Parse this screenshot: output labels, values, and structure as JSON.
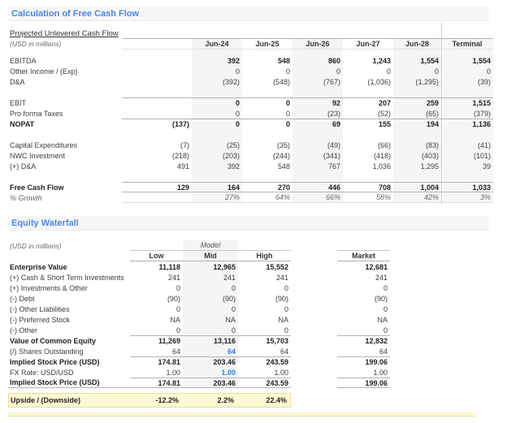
{
  "colors": {
    "accent": "#4a86e8",
    "editable": "#2f7de1",
    "highlight": "#fcf9d4",
    "column_band": "#f5f5f6"
  },
  "sections": {
    "fcf": {
      "title": "Calculation of Free Cash Flow",
      "subtitle": "Projected Unlevered Cash Flow",
      "units_label": "(USD in millions)",
      "columns": [
        "Jun-24",
        "Jun-25",
        "Jun-26",
        "Jun-27",
        "Jun-28",
        "Terminal"
      ],
      "rows": [
        {
          "label": "EBITDA",
          "val_bold": true,
          "cells": [
            "",
            "392",
            "548",
            "860",
            "1,243",
            "1,554",
            "1,554"
          ]
        },
        {
          "label": "Other Income / (Exp)",
          "cells": [
            "",
            "0",
            "0",
            "0",
            "0",
            "0",
            "0"
          ]
        },
        {
          "label": "D&A",
          "cells": [
            "",
            "(392)",
            "(548)",
            "(767)",
            "(1,036)",
            "(1,295)",
            "(39)"
          ]
        },
        {
          "spacer": true,
          "h": 13
        },
        {
          "label": "EBIT",
          "val_bold": true,
          "line_top": true,
          "cells": [
            "",
            "0",
            "0",
            "92",
            "207",
            "259",
            "1,515"
          ]
        },
        {
          "label": "Pro forma Taxes",
          "cells": [
            "",
            "0",
            "0",
            "(23)",
            "(52)",
            "(65)",
            "(379)"
          ]
        },
        {
          "label": "NOPAT",
          "label_bold": true,
          "val_bold": true,
          "line_top": true,
          "cells": [
            "(137)",
            "0",
            "0",
            "69",
            "155",
            "194",
            "1,136"
          ]
        },
        {
          "spacer": true,
          "h": 13
        },
        {
          "label": "Capital Expenditures",
          "cells": [
            "(7)",
            "(25)",
            "(35)",
            "(49)",
            "(66)",
            "(83)",
            "(41)"
          ]
        },
        {
          "label": "NWC Investment",
          "cells": [
            "(218)",
            "(203)",
            "(244)",
            "(341)",
            "(418)",
            "(403)",
            "(101)"
          ]
        },
        {
          "label": "(+) D&A",
          "cells": [
            "491",
            "392",
            "548",
            "767",
            "1,036",
            "1,295",
            "39"
          ]
        },
        {
          "spacer": true,
          "h": 13
        },
        {
          "label": "Free Cash Flow",
          "label_bold": true,
          "val_bold": true,
          "line_top": true,
          "line_bottom": true,
          "cells": [
            "129",
            "164",
            "270",
            "446",
            "708",
            "1,004",
            "1,033"
          ]
        },
        {
          "label": "% Growth",
          "italic": true,
          "line_bottom_soft": true,
          "cells": [
            "",
            "27%",
            "64%",
            "66%",
            "58%",
            "42%",
            "3%"
          ]
        }
      ]
    },
    "equity": {
      "title": "Equity Waterfall",
      "units_label": "(USD in millions)",
      "group_header": "Model",
      "columns": [
        "Low",
        "Mid",
        "High",
        "Market"
      ],
      "rows": [
        {
          "label": "Enterprise Value",
          "bold": true,
          "cells": [
            "11,118",
            "12,965",
            "15,552",
            "12,681"
          ]
        },
        {
          "label": "(+) Cash & Short Term Investments",
          "cells": [
            "241",
            "241",
            "241",
            "241"
          ]
        },
        {
          "label": "(+) Investments & Other",
          "cells": [
            "0",
            "0",
            "0",
            "0"
          ]
        },
        {
          "label": "(-) Debt",
          "cells": [
            "(90)",
            "(90)",
            "(90)",
            "(90)"
          ]
        },
        {
          "label": "(-) Other Liabilities",
          "cells": [
            "0",
            "0",
            "0",
            "0"
          ]
        },
        {
          "label": "(-) Preferred Stock",
          "cells": [
            "NA",
            "NA",
            "NA",
            "NA"
          ]
        },
        {
          "label": "(-) Other",
          "cells": [
            "0",
            "0",
            "0",
            "0"
          ]
        },
        {
          "label": "Value of Common Equity",
          "bold": true,
          "line_top": true,
          "cells": [
            "11,269",
            "13,116",
            "15,703",
            "12,832"
          ]
        },
        {
          "label": "(/) Shares Outstanding",
          "blue": [
            1
          ],
          "cells": [
            "64",
            "64",
            "64",
            "64"
          ]
        },
        {
          "label": "Implied Stock Price (USD)",
          "bold": true,
          "line_top": true,
          "cells": [
            "174.81",
            "203.46",
            "243.59",
            "199.06"
          ]
        },
        {
          "label": "FX Rate: USD/USD",
          "blue": [
            1
          ],
          "cells": [
            "1.00",
            "1.00",
            "1.00",
            "1.00"
          ]
        },
        {
          "label": "Implied Stock Price (USD)",
          "bold": true,
          "line_top": true,
          "line_bottom_full": true,
          "cells": [
            "174.81",
            "203.46",
            "243.59",
            "199.06"
          ]
        }
      ],
      "upside": {
        "label": "Upside / (Downside)",
        "values": [
          "-12.2%",
          "2.2%",
          "22.4%"
        ]
      }
    }
  }
}
